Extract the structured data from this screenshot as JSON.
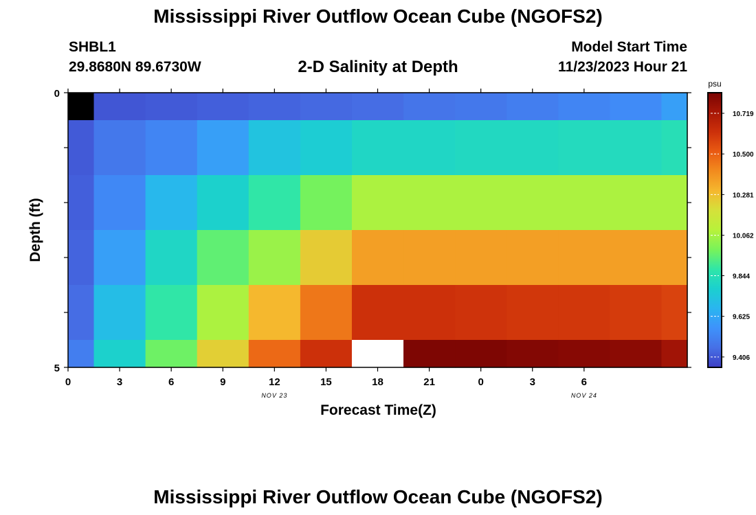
{
  "page": {
    "title": "Mississippi River Outflow Ocean Cube (NGOFS2)",
    "title_repeat": "Mississippi River Outflow Ocean Cube (NGOFS2)"
  },
  "header": {
    "station": "SHBL1",
    "coords": "29.8680N  89.6730W",
    "subtitle": "2-D Salinity at Depth",
    "model_start_label": "Model Start Time",
    "model_start_value": "11/23/2023 Hour 21"
  },
  "chart_data": {
    "type": "heatmap",
    "title": "2-D Salinity at Depth",
    "xlabel": "Forecast Time(Z)",
    "ylabel": "Depth (ft)",
    "x_ticks": [
      "0",
      "3",
      "6",
      "9",
      "12",
      "15",
      "18",
      "21",
      "0",
      "3",
      "6"
    ],
    "x_range": [
      0,
      36
    ],
    "date_labels": [
      {
        "text": "NOV 23",
        "x": 12
      },
      {
        "text": "NOV 24",
        "x": 30
      }
    ],
    "y_ticks": [
      "0",
      "5"
    ],
    "y_range": [
      0,
      5
    ],
    "colorbar": {
      "unit": "psu",
      "min": 9.35,
      "max": 10.83,
      "ticks": [
        "10.719",
        "10.500",
        "10.281",
        "10.062",
        "9.844",
        "9.625",
        "9.406"
      ],
      "colors": [
        "#3d3ec4",
        "#4670e6",
        "#3e92fb",
        "#2ab5f0",
        "#1bd0cf",
        "#2fe6a8",
        "#78f35a",
        "#b8f23a",
        "#d5e13a",
        "#f5b72e",
        "#f28b1e",
        "#e95a12",
        "#cc300a",
        "#a81706",
        "#7a0403"
      ]
    },
    "columns": [
      {
        "x0": 0,
        "x1": 1.5
      },
      {
        "x0": 1.5,
        "x1": 4.5
      },
      {
        "x0": 4.5,
        "x1": 7.5
      },
      {
        "x0": 7.5,
        "x1": 10.5
      },
      {
        "x0": 10.5,
        "x1": 13.5
      },
      {
        "x0": 13.5,
        "x1": 16.5
      },
      {
        "x0": 16.5,
        "x1": 19.5
      },
      {
        "x0": 19.5,
        "x1": 22.5
      },
      {
        "x0": 22.5,
        "x1": 25.5
      },
      {
        "x0": 25.5,
        "x1": 28.5
      },
      {
        "x0": 28.5,
        "x1": 31.5
      },
      {
        "x0": 31.5,
        "x1": 34.5
      },
      {
        "x0": 34.5,
        "x1": 36
      }
    ],
    "rows": [
      {
        "y0": 0,
        "y1": 0.5
      },
      {
        "y0": 0.5,
        "y1": 1.5
      },
      {
        "y0": 1.5,
        "y1": 2.5
      },
      {
        "y0": 2.5,
        "y1": 3.5
      },
      {
        "y0": 3.5,
        "y1": 4.5
      },
      {
        "y0": 4.5,
        "y1": 5
      }
    ],
    "values": [
      [
        null,
        9.4,
        9.41,
        9.42,
        9.43,
        9.44,
        9.45,
        9.47,
        9.48,
        9.5,
        9.52,
        9.54,
        9.6
      ],
      [
        9.41,
        9.48,
        9.52,
        9.6,
        9.72,
        9.76,
        9.8,
        9.8,
        9.81,
        9.81,
        9.82,
        9.82,
        9.84
      ],
      [
        9.42,
        9.53,
        9.68,
        9.78,
        9.88,
        9.98,
        10.07,
        10.07,
        10.07,
        10.07,
        10.07,
        10.07,
        10.07
      ],
      [
        9.43,
        9.6,
        9.8,
        9.95,
        10.04,
        10.25,
        10.36,
        10.36,
        10.36,
        10.36,
        10.36,
        10.36,
        10.36
      ],
      [
        9.45,
        9.7,
        9.88,
        10.07,
        10.3,
        10.45,
        10.62,
        10.62,
        10.61,
        10.6,
        10.6,
        10.59,
        10.57
      ],
      [
        9.5,
        9.78,
        9.97,
        10.24,
        10.48,
        10.62,
        "missing",
        10.82,
        10.82,
        10.81,
        10.8,
        10.79,
        10.74
      ]
    ]
  }
}
